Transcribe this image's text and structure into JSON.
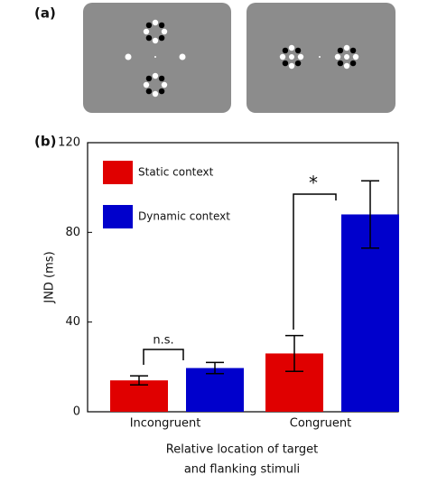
{
  "panel_labels": [
    "(a)",
    "(b)"
  ],
  "chart_data": {
    "type": "bar",
    "categories": [
      "Incongruent",
      "Congruent"
    ],
    "series": [
      {
        "name": "Static context",
        "color": "#e00000",
        "values": [
          14,
          26
        ],
        "errors": [
          2,
          8
        ]
      },
      {
        "name": "Dynamic context",
        "color": "#0000cc",
        "values": [
          19.5,
          88
        ],
        "errors": [
          2.5,
          15
        ]
      }
    ],
    "ylabel": "JND (ms)",
    "xlabel": [
      "Relative location of target",
      "and flanking stimuli"
    ],
    "ylim": [
      0,
      120
    ],
    "yticks": [
      0,
      40,
      80,
      120
    ],
    "annotations": [
      "n.s.",
      "*"
    ]
  }
}
